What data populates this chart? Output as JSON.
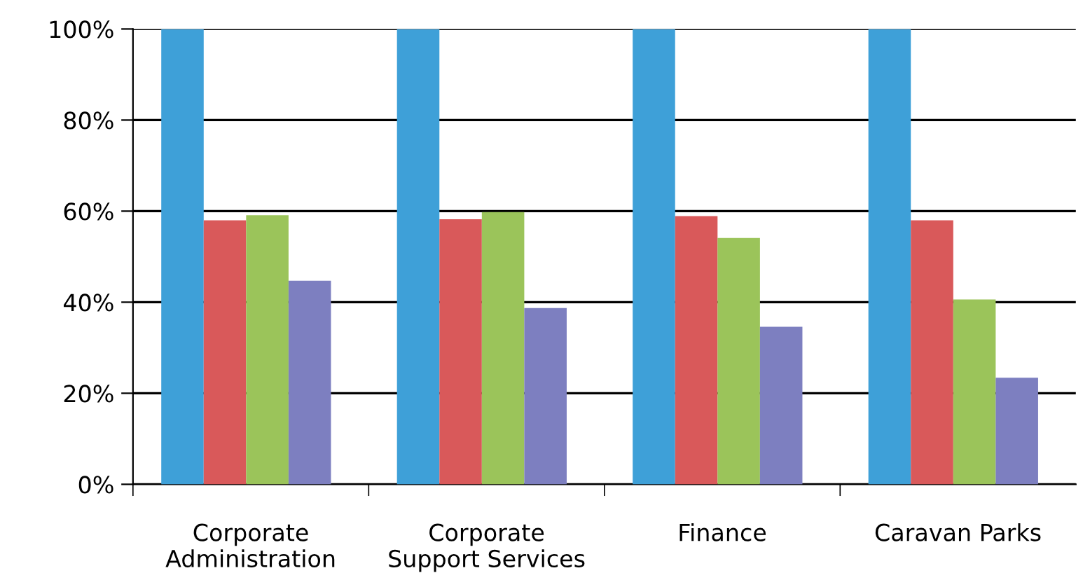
{
  "chart_data": {
    "type": "bar",
    "categories": [
      "Corporate\nAdministration",
      "Corporate\nSupport Services",
      "Finance",
      "Caravan Parks"
    ],
    "series": [
      {
        "color": "#3ea0d8",
        "values": [
          100,
          100,
          100,
          100
        ]
      },
      {
        "color": "#d9595a",
        "values": [
          58.0,
          58.2,
          58.9,
          58.0
        ]
      },
      {
        "color": "#9bc45a",
        "values": [
          59.1,
          59.8,
          54.1,
          40.6
        ]
      },
      {
        "color": "#7d7fc0",
        "values": [
          44.7,
          38.7,
          34.6,
          23.4
        ]
      }
    ],
    "ylim": [
      0,
      100
    ],
    "yticks": [
      {
        "value": 0,
        "label": "0%"
      },
      {
        "value": 20,
        "label": "20%"
      },
      {
        "value": 40,
        "label": "40%"
      },
      {
        "value": 60,
        "label": "60%"
      },
      {
        "value": 80,
        "label": "80%"
      },
      {
        "value": 100,
        "label": "100%"
      }
    ],
    "grid": "y",
    "legend": false
  }
}
